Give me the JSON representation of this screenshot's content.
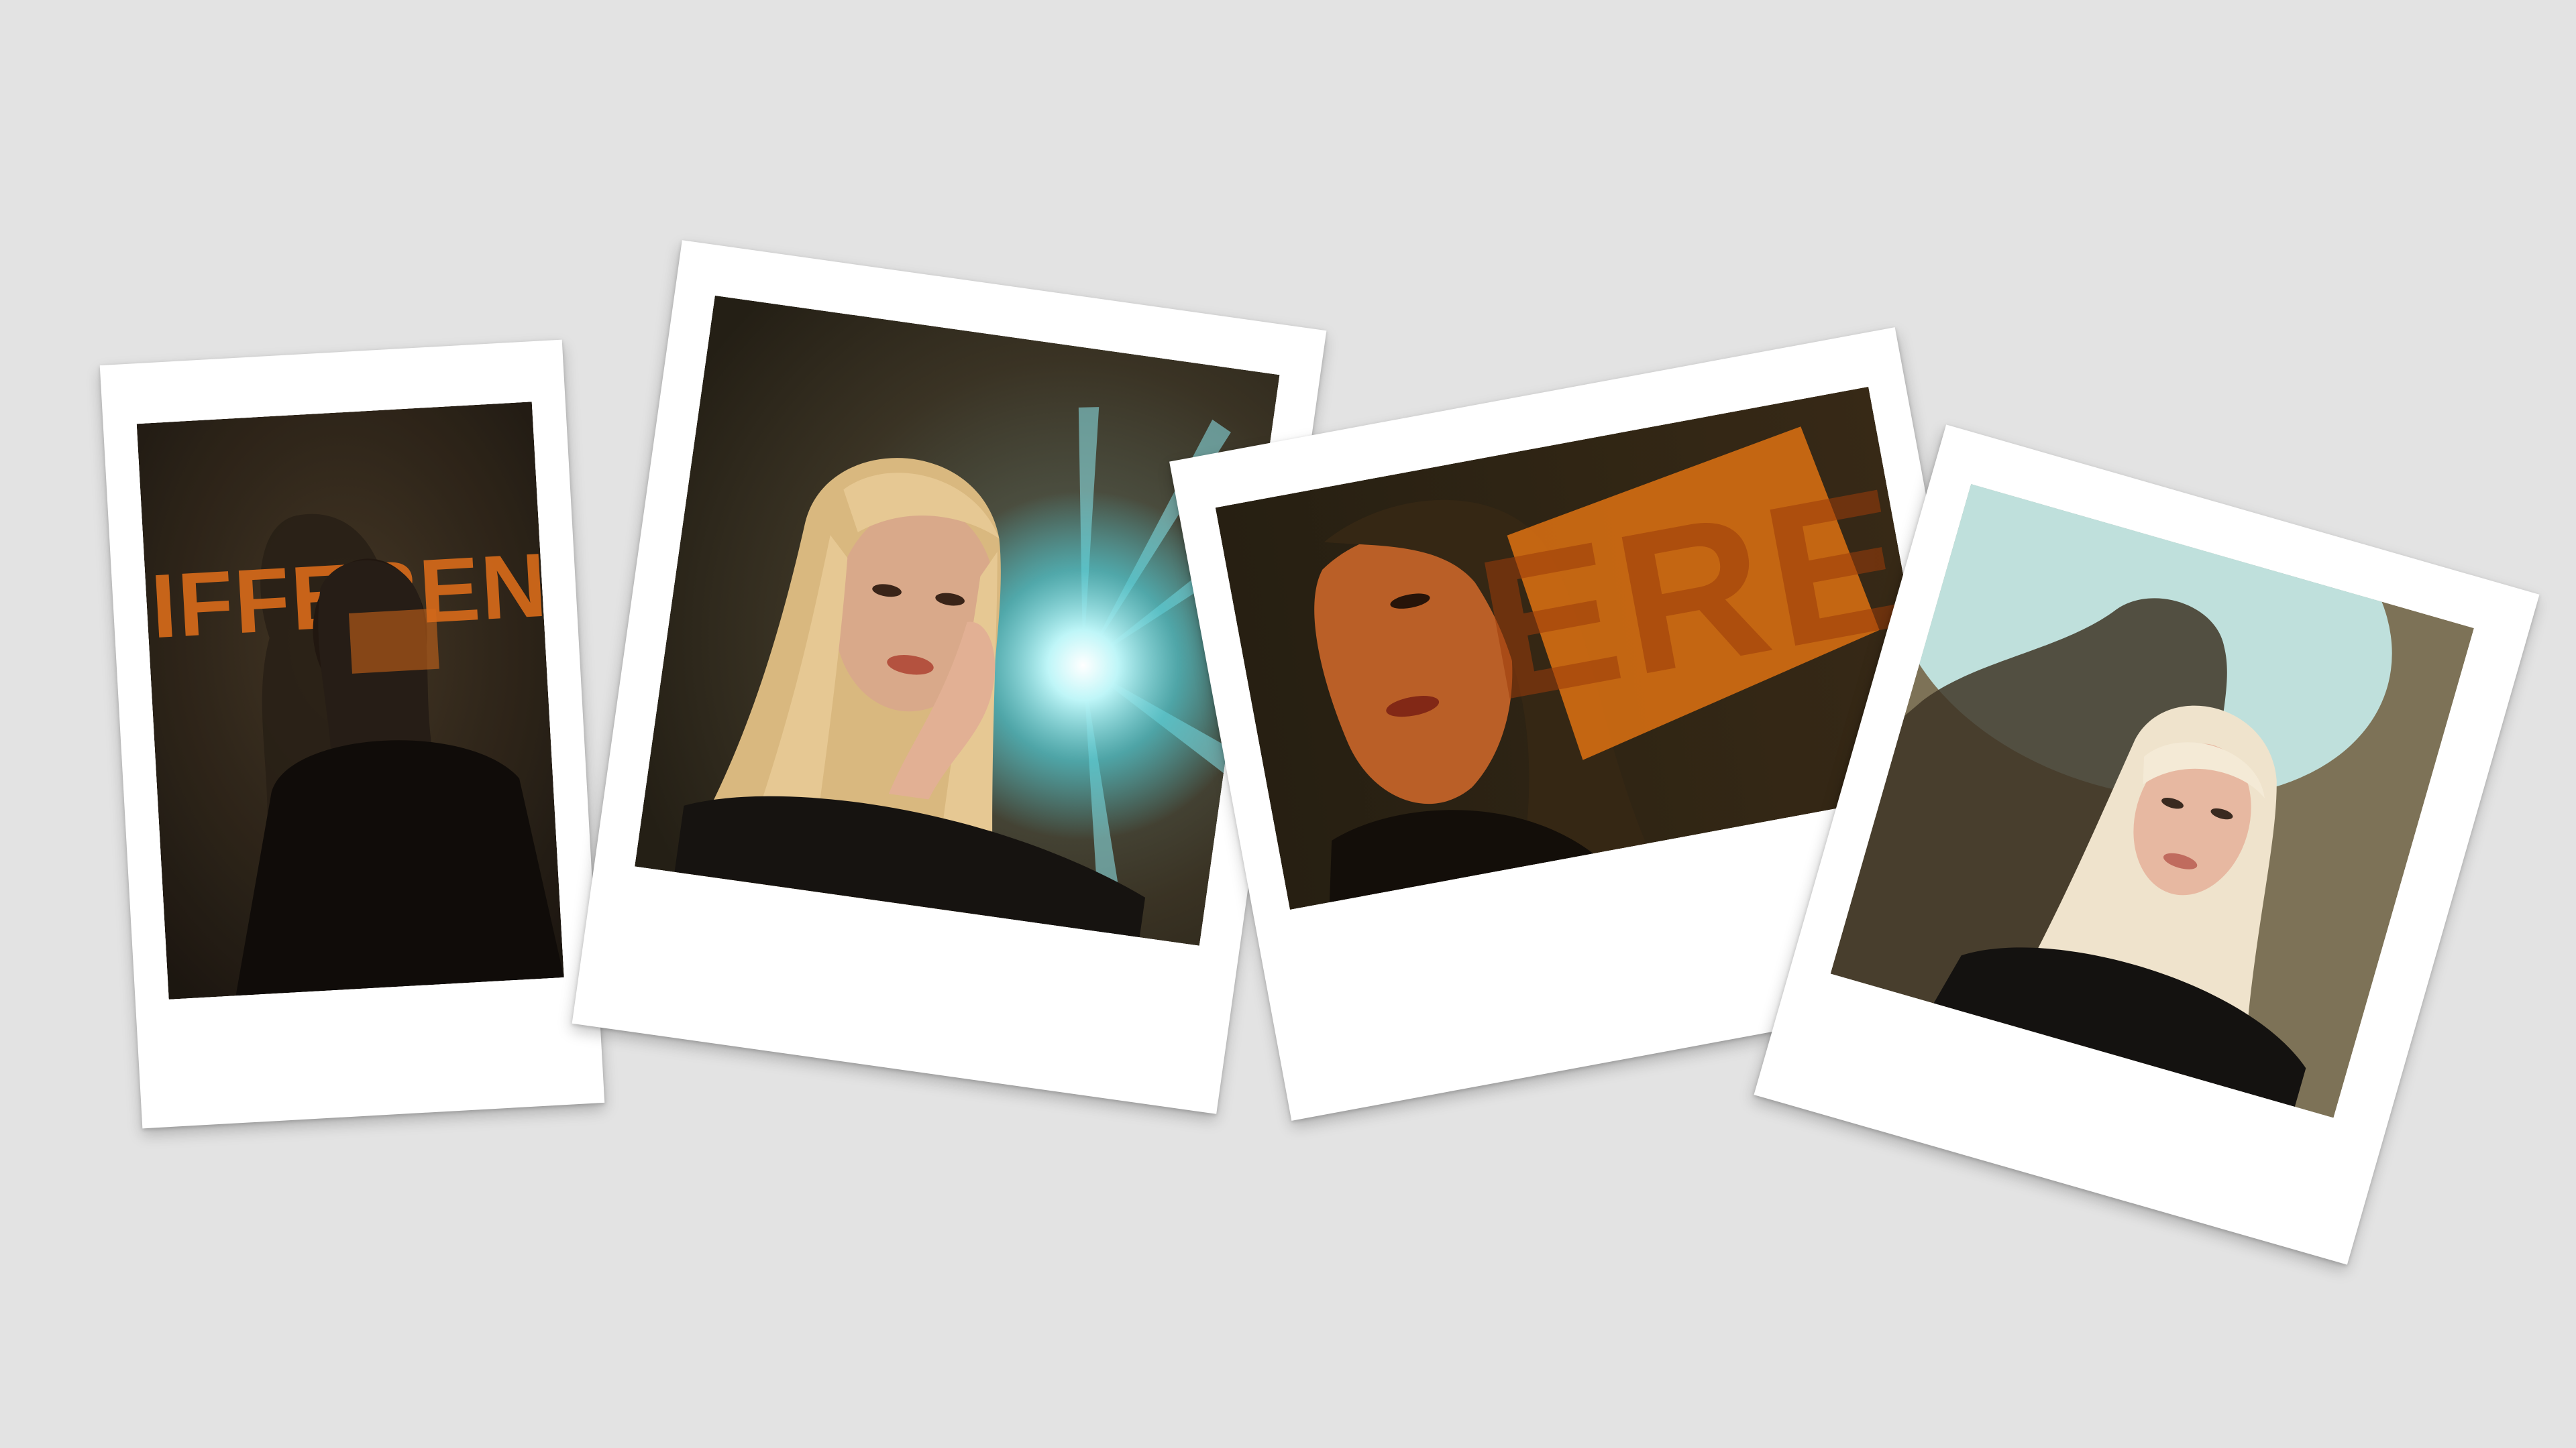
{
  "photos": [
    {
      "name": "portrait-different-text",
      "projected_text": "DIFFERENT",
      "tones": {
        "bg": "#3a2f22",
        "accent": "#e8731d",
        "hair": "#2a2018"
      }
    },
    {
      "name": "portrait-light-flare",
      "tones": {
        "bg": "#3a3324",
        "flare": "#7fe7ee",
        "hair": "#e6c893",
        "skin": "#d9a98a"
      }
    },
    {
      "name": "portrait-orange-projection",
      "projected_text": "ERE",
      "tones": {
        "bg": "#2e2516",
        "accent": "#ee7a14",
        "skin": "#c9672a"
      }
    },
    {
      "name": "portrait-shadow-silhouette",
      "tones": {
        "bg": "#8a7f63",
        "sky": "#bfe0dc",
        "hair": "#efe3cc",
        "skin": "#e7b8a1"
      }
    }
  ]
}
